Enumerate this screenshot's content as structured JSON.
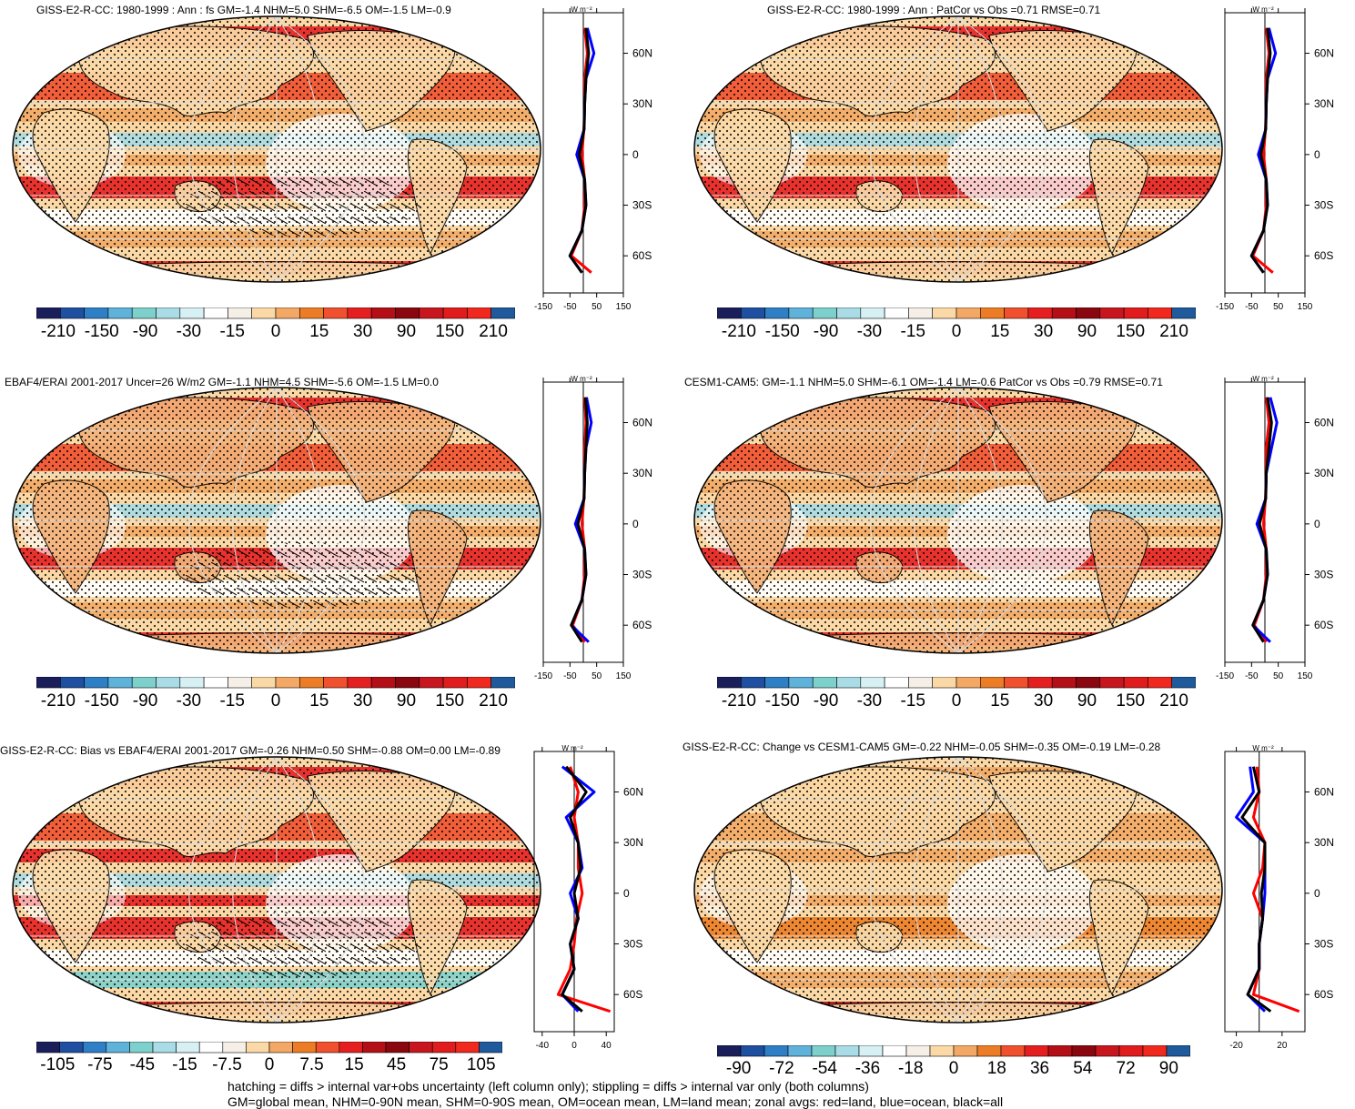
{
  "colors": {
    "scale": [
      "#1a1f5c",
      "#1f4fa0",
      "#2f7fc6",
      "#5fb2da",
      "#7ed0cc",
      "#a9dce6",
      "#d6f0f4",
      "#ffffff",
      "#f6efe7",
      "#fbd9a6",
      "#f3a865",
      "#ec7d26",
      "#f0502d",
      "#e51f20",
      "#b40e16",
      "#8a0710",
      "#c8161e",
      "#e01c1c",
      "#f0281e",
      "#1f5a9c"
    ],
    "land_line": "red",
    "ocean_line": "blue",
    "all_line": "black"
  },
  "panels": [
    {
      "title": "GISS-E2-R-CC: 1980-1999 : Ann : fs GM=-1.4 NHM=5.0 SHM=-6.5 OM=-1.5 LM=-0.9",
      "units": "W m⁻²",
      "cbar_labels": [
        "-210",
        "-150",
        "-90",
        "-30",
        "-15",
        "0",
        "15",
        "30",
        "90",
        "150",
        "210"
      ],
      "zonal_ticks": [
        "-150",
        "-50",
        "50",
        "150"
      ],
      "lat_labels": [
        "60N",
        "30N",
        "0",
        "30S",
        "60S"
      ],
      "hatching": true
    },
    {
      "title": "GISS-E2-R-CC: 1980-1999 : Ann : PatCor vs Obs =0.71 RMSE=0.71",
      "units": "W m⁻²",
      "cbar_labels": [
        "-210",
        "-150",
        "-90",
        "-30",
        "-15",
        "0",
        "15",
        "30",
        "90",
        "150",
        "210"
      ],
      "zonal_ticks": [
        "-150",
        "-50",
        "50",
        "150"
      ],
      "lat_labels": [
        "60N",
        "30N",
        "0",
        "30S",
        "60S"
      ],
      "hatching": false
    },
    {
      "title": "EBAF4/ERAI 2001-2017 Uncer=26 W/m2 GM=-1.1 NHM=4.5 SHM=-5.6 OM=-1.5 LM=0.0",
      "units": "W m⁻²",
      "cbar_labels": [
        "-210",
        "-150",
        "-90",
        "-30",
        "-15",
        "0",
        "15",
        "30",
        "90",
        "150",
        "210"
      ],
      "zonal_ticks": [
        "-150",
        "-50",
        "50",
        "150"
      ],
      "lat_labels": [
        "60N",
        "30N",
        "0",
        "30S",
        "60S"
      ],
      "hatching": true
    },
    {
      "title": "CESM1-CAM5: GM=-1.1 NHM=5.0 SHM=-6.1 OM=-1.4 LM=-0.6 PatCor vs Obs =0.79 RMSE=0.71",
      "units": "W m⁻²",
      "cbar_labels": [
        "-210",
        "-150",
        "-90",
        "-30",
        "-15",
        "0",
        "15",
        "30",
        "90",
        "150",
        "210"
      ],
      "zonal_ticks": [
        "-150",
        "-50",
        "50",
        "150"
      ],
      "lat_labels": [
        "60N",
        "30N",
        "0",
        "30S",
        "60S"
      ],
      "hatching": false
    },
    {
      "title": "GISS-E2-R-CC: Bias vs EBAF4/ERAI 2001-2017 GM=-0.26 NHM=0.50 SHM=-0.88 OM=0.00 LM=-0.89",
      "units": "W m⁻²",
      "cbar_labels": [
        "-105",
        "-75",
        "-45",
        "-15",
        "-7.5",
        "0",
        "7.5",
        "15",
        "45",
        "75",
        "105"
      ],
      "zonal_ticks": [
        "-40",
        "0",
        "40"
      ],
      "lat_labels": [
        "60N",
        "30N",
        "0",
        "30S",
        "60S"
      ],
      "hatching": true
    },
    {
      "title": "GISS-E2-R-CC: Change vs CESM1-CAM5 GM=-0.22 NHM=-0.05 SHM=-0.35 OM=-0.19 LM=-0.28",
      "units": "W m⁻²",
      "cbar_labels": [
        "-90",
        "-72",
        "-54",
        "-36",
        "-18",
        "0",
        "18",
        "36",
        "54",
        "72",
        "90"
      ],
      "zonal_ticks": [
        "-20",
        "20"
      ],
      "lat_labels": [
        "60N",
        "30N",
        "0",
        "30S",
        "60S"
      ],
      "hatching": false
    }
  ],
  "chart_data": [
    {
      "type": "heatmap",
      "title": "GISS-E2-R-CC: 1980-1999 : Ann : fs GM=-1.4 NHM=5.0 SHM=-6.5 OM=-1.5 LM=-0.9",
      "colorbar": [
        -210,
        -150,
        -90,
        -30,
        -15,
        0,
        15,
        30,
        90,
        150,
        210
      ],
      "zonal_mean": {
        "lat": [
          75,
          60,
          45,
          30,
          15,
          0,
          -15,
          -30,
          -45,
          -60,
          -70
        ],
        "all": [
          10,
          20,
          10,
          5,
          3,
          -15,
          5,
          10,
          -5,
          -50,
          -5
        ],
        "land": [
          5,
          15,
          5,
          5,
          2,
          -5,
          5,
          5,
          -5,
          -45,
          30
        ],
        "ocean": [
          15,
          40,
          10,
          5,
          3,
          -25,
          5,
          10,
          -5,
          -50,
          -5
        ],
        "xlim": [
          -150,
          150
        ]
      }
    },
    {
      "type": "heatmap",
      "title": "GISS-E2-R-CC: 1980-1999 : Ann : PatCor vs Obs =0.71 RMSE=0.71",
      "colorbar": [
        -210,
        -150,
        -90,
        -30,
        -15,
        0,
        15,
        30,
        90,
        150,
        210
      ],
      "zonal_mean": {
        "lat": [
          75,
          60,
          45,
          30,
          15,
          0,
          -15,
          -30,
          -45,
          -60,
          -70
        ],
        "all": [
          10,
          20,
          10,
          5,
          3,
          -15,
          5,
          10,
          -5,
          -50,
          -5
        ],
        "land": [
          5,
          15,
          5,
          5,
          2,
          -5,
          5,
          5,
          -5,
          -45,
          30
        ],
        "ocean": [
          15,
          40,
          10,
          5,
          3,
          -25,
          5,
          10,
          -5,
          -50,
          -5
        ],
        "xlim": [
          -150,
          150
        ]
      }
    },
    {
      "type": "heatmap",
      "title": "EBAF4/ERAI 2001-2017 Uncer=26 W/m2 GM=-1.1 NHM=4.5 SHM=-5.6 OM=-1.5 LM=0.0",
      "colorbar": [
        -210,
        -150,
        -90,
        -30,
        -15,
        0,
        15,
        30,
        90,
        150,
        210
      ],
      "zonal_mean": {
        "lat": [
          75,
          60,
          45,
          30,
          15,
          0,
          -15,
          -30,
          -45,
          -60,
          -70
        ],
        "all": [
          8,
          15,
          10,
          5,
          3,
          -20,
          5,
          10,
          -5,
          -45,
          -5
        ],
        "land": [
          5,
          10,
          5,
          5,
          2,
          -5,
          5,
          5,
          -5,
          -40,
          5
        ],
        "ocean": [
          12,
          30,
          10,
          5,
          3,
          -30,
          5,
          10,
          -5,
          -45,
          20
        ],
        "xlim": [
          -150,
          150
        ]
      }
    },
    {
      "type": "heatmap",
      "title": "CESM1-CAM5: GM=-1.1 NHM=5.0 SHM=-6.1 OM=-1.4 LM=-0.6 PatCor vs Obs =0.79 RMSE=0.71",
      "colorbar": [
        -210,
        -150,
        -90,
        -30,
        -15,
        0,
        15,
        30,
        90,
        150,
        210
      ],
      "zonal_mean": {
        "lat": [
          75,
          60,
          45,
          30,
          15,
          0,
          -15,
          -30,
          -45,
          -60,
          -70
        ],
        "all": [
          10,
          25,
          15,
          5,
          3,
          -20,
          5,
          10,
          -5,
          -45,
          -5
        ],
        "land": [
          5,
          15,
          5,
          5,
          2,
          -5,
          5,
          5,
          -5,
          -40,
          5
        ],
        "ocean": [
          20,
          45,
          25,
          5,
          3,
          -30,
          5,
          10,
          -5,
          -45,
          20
        ],
        "xlim": [
          -150,
          150
        ]
      }
    },
    {
      "type": "heatmap",
      "title": "GISS-E2-R-CC: Bias vs EBAF4/ERAI 2001-2017 GM=-0.26 NHM=0.50 SHM=-0.88 OM=0.00 LM=-0.89",
      "colorbar": [
        -105,
        -75,
        -45,
        -15,
        -7.5,
        0,
        7.5,
        15,
        45,
        75,
        105
      ],
      "zonal_mean": {
        "lat": [
          75,
          60,
          45,
          30,
          15,
          0,
          -15,
          -30,
          -45,
          -60,
          -70
        ],
        "all": [
          -10,
          15,
          -5,
          5,
          8,
          0,
          5,
          -5,
          0,
          -15,
          10
        ],
        "land": [
          -5,
          5,
          0,
          5,
          5,
          10,
          3,
          0,
          -5,
          -20,
          45
        ],
        "ocean": [
          -15,
          25,
          -10,
          5,
          10,
          -5,
          5,
          -5,
          0,
          -15,
          5
        ],
        "xlim": [
          -50,
          50
        ]
      }
    },
    {
      "type": "heatmap",
      "title": "GISS-E2-R-CC: Change vs CESM1-CAM5 GM=-0.22 NHM=-0.05 SHM=-0.35 OM=-0.19 LM=-0.28",
      "colorbar": [
        -90,
        -72,
        -54,
        -36,
        -18,
        0,
        18,
        36,
        54,
        72,
        90
      ],
      "zonal_mean": {
        "lat": [
          75,
          60,
          45,
          30,
          15,
          0,
          -15,
          -30,
          -45,
          -60,
          -70
        ],
        "all": [
          -5,
          0,
          -15,
          5,
          5,
          2,
          3,
          0,
          0,
          -10,
          10
        ],
        "land": [
          -2,
          0,
          -5,
          5,
          3,
          -5,
          3,
          0,
          0,
          -5,
          35
        ],
        "ocean": [
          -8,
          -5,
          -20,
          5,
          5,
          5,
          3,
          0,
          0,
          -10,
          5
        ],
        "xlim": [
          -30,
          40
        ]
      }
    }
  ],
  "footer": {
    "line1": "hatching = diffs > internal var+obs uncertainty (left column only); stippling = diffs > internal var only (both columns)",
    "line2": "GM=global mean, NHM=0-90N mean, SHM=0-90S mean, OM=ocean mean, LM=land mean; zonal avgs: red=land, blue=ocean, black=all"
  }
}
